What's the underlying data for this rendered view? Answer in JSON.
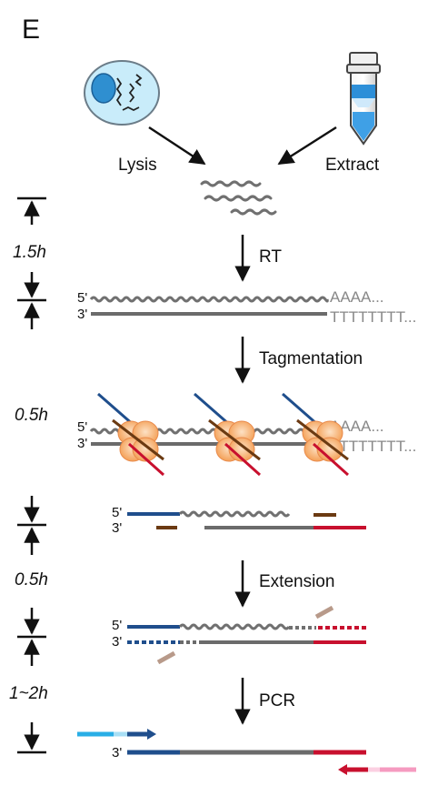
{
  "panel_label": "E",
  "sources": {
    "left": "Lysis",
    "right": "Extract"
  },
  "steps": {
    "rt": "RT",
    "tagmentation": "Tagmentation",
    "extension": "Extension",
    "pcr": "PCR"
  },
  "times": {
    "t1": "1.5h",
    "t2": "0.5h",
    "t3": "0.5h",
    "t4": "1~2h"
  },
  "ends": {
    "five": "5'",
    "three": "3'"
  },
  "tails": {
    "polyA": "AAAA...",
    "polyT": "TTTTTTTT..."
  },
  "colors": {
    "rna": "#707070",
    "cdna": "#6b6b6b",
    "adapter_blue": "#1f4e8c",
    "adapter_red": "#c8102e",
    "adapter_brown": "#6b3a12",
    "tn5": "#f4a460",
    "cell": "#8fd3f0",
    "nucleus": "#2f8fd0",
    "primer_cyan": "#29aee6",
    "primer_pink": "#f59bc0",
    "oligo_tan": "#b89a8a"
  },
  "icons": [
    "cell-icon",
    "extraction-tube-icon",
    "tn5-transposase-icon"
  ]
}
